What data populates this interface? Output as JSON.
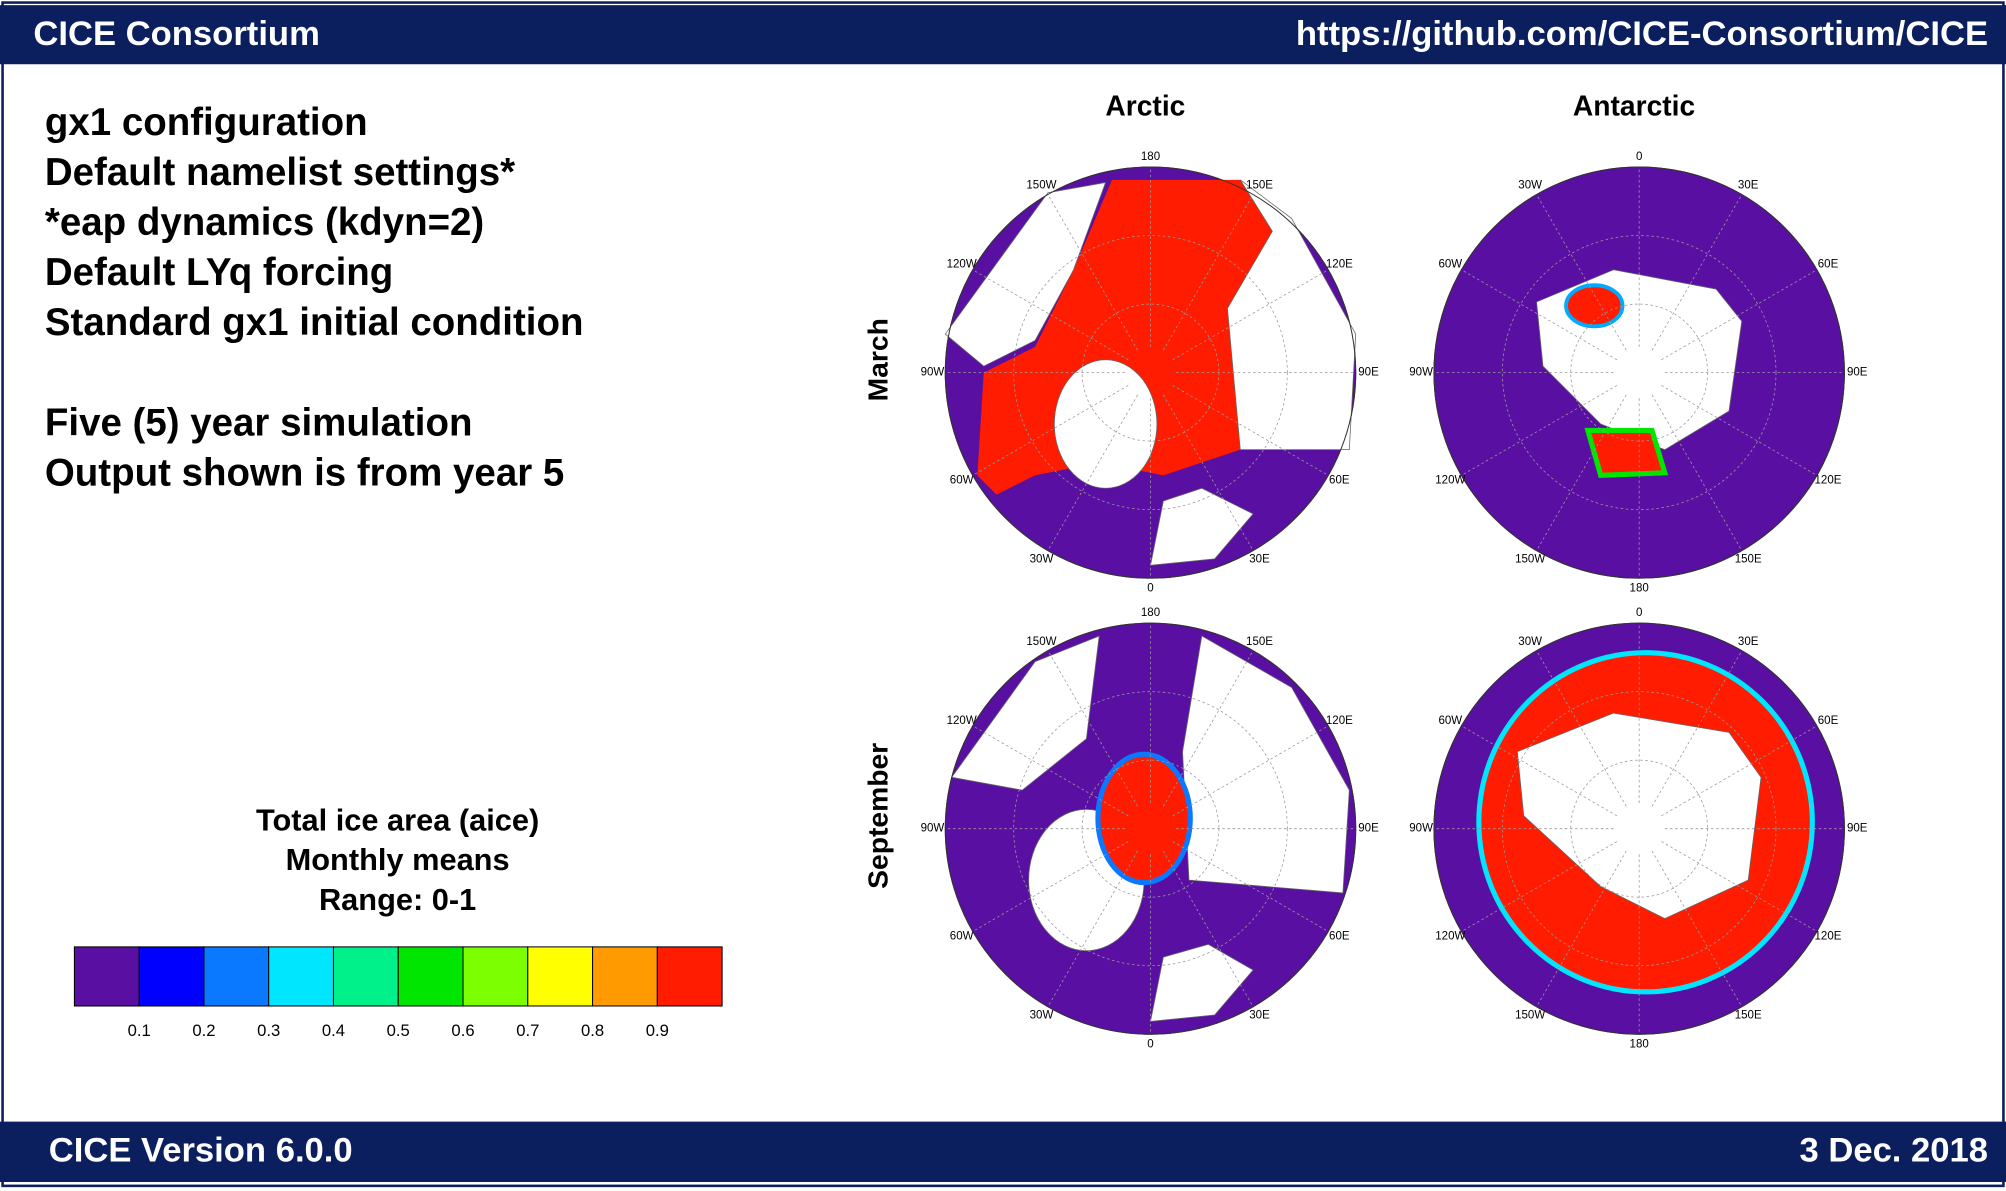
{
  "header": {
    "title": "CICE Consortium",
    "url": "https://github.com/CICE-Consortium/CICE"
  },
  "description": {
    "lines": [
      "gx1 configuration",
      "Default namelist settings*",
      "*eap dynamics (kdyn=2)",
      "Default LYq forcing",
      "Standard gx1 initial condition"
    ],
    "simulation": [
      "Five (5) year simulation",
      "Output shown is from year 5"
    ]
  },
  "maps": {
    "columns": [
      "Arctic",
      "Antarctic"
    ],
    "rows": [
      "March",
      "September"
    ],
    "longitude_labels": [
      [
        "180",
        "150E",
        "120E",
        "90E",
        "60E",
        "30E",
        "0",
        "30W",
        "60W",
        "90W",
        "120W",
        "150W"
      ],
      [
        "0",
        "30E",
        "60E",
        "90E",
        "120E",
        "150E",
        "180",
        "150W",
        "120W",
        "90W",
        "60W",
        "30W"
      ]
    ]
  },
  "legend": {
    "title": [
      "Total ice area (aice)",
      "Monthly means",
      "Range: 0-1"
    ],
    "colors": [
      "#5a0fa3",
      "#0000ff",
      "#0a78ff",
      "#00e6ff",
      "#00f08a",
      "#00e600",
      "#7cff00",
      "#ffff00",
      "#ff9a00",
      "#ff1c00"
    ],
    "labels": [
      "0.1",
      "0.2",
      "0.3",
      "0.4",
      "0.5",
      "0.6",
      "0.7",
      "0.8",
      "0.9"
    ]
  },
  "footer": {
    "version": "CICE Version 6.0.0",
    "date": "3 Dec. 2018"
  }
}
